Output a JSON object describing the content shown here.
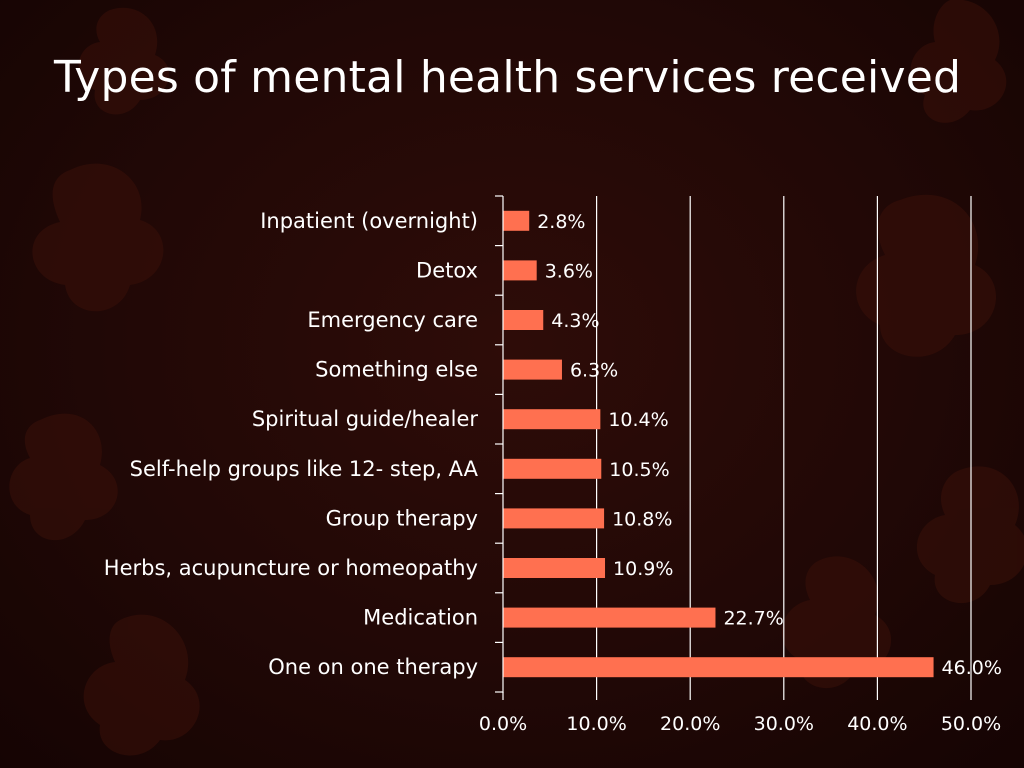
{
  "slide": {
    "title": "Types of mental health services received"
  },
  "colors": {
    "bar": "#ff7050",
    "text": "#ffffff",
    "grid": "#ffffff"
  },
  "chart_data": {
    "type": "bar",
    "orientation": "horizontal",
    "title": "Types of mental health services received",
    "categories": [
      "Inpatient (overnight)",
      "Detox",
      "Emergency care",
      "Something else",
      "Spiritual guide/healer",
      "Self-help groups like 12- step, AA",
      "Group therapy",
      "Herbs, acupuncture or homeopathy",
      "Medication",
      "One on one therapy"
    ],
    "values": [
      2.8,
      3.6,
      4.3,
      6.3,
      10.4,
      10.5,
      10.8,
      10.9,
      22.7,
      46.0
    ],
    "value_labels": [
      "2.8%",
      "3.6%",
      "4.3%",
      "6.3%",
      "10.4%",
      "10.5%",
      "10.8%",
      "10.9%",
      "22.7%",
      "46.0%"
    ],
    "xlim": [
      0,
      50
    ],
    "x_ticks": [
      0,
      10,
      20,
      30,
      40,
      50
    ],
    "x_tick_labels": [
      "0.0%",
      "10.0%",
      "20.0%",
      "30.0%",
      "40.0%",
      "50.0%"
    ],
    "grid": "vertical",
    "legend": "none"
  }
}
